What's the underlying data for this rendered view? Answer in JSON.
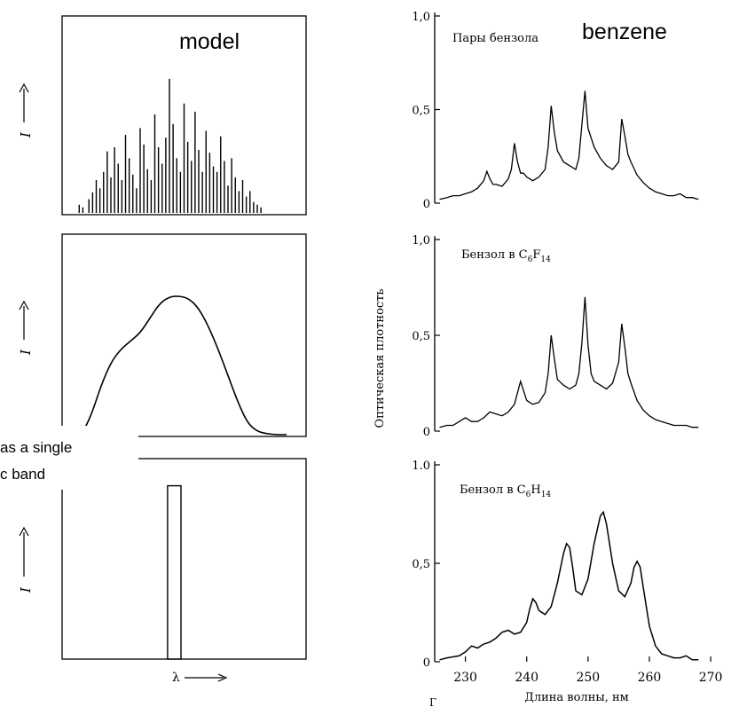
{
  "labels": {
    "model": "model",
    "benzene": "benzene",
    "overlay_line1": "as a single",
    "overlay_line2": "c band",
    "y_left": "I",
    "x_left": "λ",
    "y_right_axis": "Оптическая   плотность",
    "x_right_axis": "Длина волны, нм",
    "x_right_partial": "Г"
  },
  "chart_data": [
    {
      "id": "left-top",
      "type": "bar",
      "title": "model",
      "ylabel": "I",
      "xlabel": "",
      "x": [
        0.07,
        0.085,
        0.11,
        0.125,
        0.14,
        0.155,
        0.17,
        0.185,
        0.2,
        0.215,
        0.23,
        0.245,
        0.26,
        0.275,
        0.29,
        0.305,
        0.32,
        0.335,
        0.35,
        0.365,
        0.38,
        0.395,
        0.41,
        0.425,
        0.44,
        0.455,
        0.47,
        0.485,
        0.5,
        0.515,
        0.53,
        0.545,
        0.56,
        0.575,
        0.59,
        0.605,
        0.62,
        0.635,
        0.65,
        0.665,
        0.68,
        0.695,
        0.71,
        0.725,
        0.74,
        0.755,
        0.77,
        0.785,
        0.8,
        0.815
      ],
      "values": [
        0.06,
        0.04,
        0.1,
        0.15,
        0.24,
        0.18,
        0.3,
        0.45,
        0.26,
        0.48,
        0.36,
        0.24,
        0.57,
        0.4,
        0.28,
        0.18,
        0.62,
        0.5,
        0.32,
        0.24,
        0.72,
        0.48,
        0.36,
        0.55,
        0.98,
        0.65,
        0.4,
        0.3,
        0.8,
        0.52,
        0.38,
        0.74,
        0.46,
        0.3,
        0.6,
        0.44,
        0.34,
        0.3,
        0.56,
        0.38,
        0.2,
        0.4,
        0.26,
        0.16,
        0.24,
        0.12,
        0.16,
        0.08,
        0.06,
        0.04
      ],
      "xlim": [
        0,
        1
      ],
      "ylim": [
        0,
        1.2
      ]
    },
    {
      "id": "left-mid",
      "type": "line",
      "ylabel": "I",
      "xlabel": "",
      "x": [
        0.08,
        0.12,
        0.16,
        0.2,
        0.24,
        0.28,
        0.32,
        0.36,
        0.4,
        0.44,
        0.48,
        0.52,
        0.56,
        0.6,
        0.64,
        0.68,
        0.72,
        0.76,
        0.8,
        0.84,
        0.88,
        0.92
      ],
      "y": [
        0.0,
        0.12,
        0.3,
        0.44,
        0.52,
        0.57,
        0.62,
        0.71,
        0.8,
        0.84,
        0.845,
        0.83,
        0.77,
        0.66,
        0.52,
        0.36,
        0.2,
        0.07,
        0.02,
        0.005,
        0.0,
        0.0
      ],
      "xlim": [
        0,
        1
      ],
      "ylim": [
        0,
        1
      ]
    },
    {
      "id": "left-bot",
      "type": "bar",
      "ylabel": "I",
      "xlabel": "λ",
      "x": [
        0.46
      ],
      "width": 0.055,
      "values": [
        0.88
      ],
      "xlim": [
        0,
        1
      ],
      "ylim": [
        0,
        1
      ]
    },
    {
      "id": "right-top",
      "type": "line",
      "title": "Пары бензола",
      "ylabel": "Оптическая плотность",
      "yticks": [
        "1,0",
        "0,5",
        "0"
      ],
      "x": [
        225.8,
        227,
        228,
        229,
        230,
        231,
        232,
        233,
        233.5,
        234,
        234.5,
        235,
        236,
        237,
        237.5,
        238,
        238.5,
        239,
        239.5,
        240,
        241,
        242,
        243,
        243.5,
        244,
        244.5,
        245,
        246,
        247,
        248,
        248.5,
        249,
        249.5,
        250,
        251,
        252,
        253,
        254,
        255,
        255.5,
        256,
        256.5,
        257,
        258,
        259,
        260,
        261,
        262,
        263,
        264,
        265,
        266,
        267,
        268
      ],
      "y": [
        0.02,
        0.03,
        0.04,
        0.04,
        0.05,
        0.06,
        0.08,
        0.12,
        0.17,
        0.13,
        0.1,
        0.1,
        0.09,
        0.13,
        0.18,
        0.32,
        0.22,
        0.16,
        0.16,
        0.14,
        0.12,
        0.14,
        0.18,
        0.3,
        0.52,
        0.38,
        0.28,
        0.22,
        0.2,
        0.18,
        0.24,
        0.42,
        0.6,
        0.4,
        0.3,
        0.24,
        0.2,
        0.18,
        0.22,
        0.45,
        0.36,
        0.26,
        0.22,
        0.15,
        0.11,
        0.08,
        0.06,
        0.05,
        0.04,
        0.04,
        0.05,
        0.03,
        0.03,
        0.02
      ],
      "xlim": [
        225,
        271
      ],
      "ylim": [
        0,
        1
      ]
    },
    {
      "id": "right-mid",
      "type": "line",
      "title": "Бензол в C6F14",
      "title_main": "Бензол в C",
      "title_sub1": "6",
      "title_mid": "F",
      "title_sub2": "14",
      "ylabel": "Оптическая плотность",
      "yticks": [
        "1,0",
        "0,5",
        "0"
      ],
      "x": [
        225.8,
        227,
        228,
        229,
        230,
        231,
        232,
        233,
        234,
        235,
        236,
        237,
        238,
        238.5,
        239,
        239.5,
        240,
        241,
        242,
        243,
        243.5,
        244,
        244.5,
        245,
        246,
        247,
        248,
        248.5,
        249,
        249.5,
        250,
        250.5,
        251,
        252,
        253,
        254,
        255,
        255.5,
        256,
        256.5,
        257,
        258,
        259,
        260,
        261,
        262,
        263,
        264,
        265,
        266,
        267,
        268
      ],
      "y": [
        0.02,
        0.03,
        0.03,
        0.05,
        0.07,
        0.05,
        0.05,
        0.07,
        0.1,
        0.09,
        0.08,
        0.1,
        0.14,
        0.2,
        0.26,
        0.21,
        0.16,
        0.14,
        0.15,
        0.2,
        0.3,
        0.5,
        0.38,
        0.27,
        0.24,
        0.22,
        0.24,
        0.3,
        0.46,
        0.7,
        0.45,
        0.3,
        0.26,
        0.24,
        0.22,
        0.25,
        0.36,
        0.56,
        0.44,
        0.3,
        0.25,
        0.16,
        0.11,
        0.08,
        0.06,
        0.05,
        0.04,
        0.03,
        0.03,
        0.03,
        0.02,
        0.02
      ],
      "xlim": [
        225,
        271
      ],
      "ylim": [
        0,
        1
      ]
    },
    {
      "id": "right-bot",
      "type": "line",
      "title": "Бензол в C6H14",
      "title_main": "Бензол в C",
      "title_sub1": "6",
      "title_mid": "H",
      "title_sub2": "14",
      "ylabel": "Оптическая плотность",
      "xlabel": "Длина волны, нм",
      "yticks": [
        "1.0",
        "0,5",
        "0"
      ],
      "xticks": [
        230,
        240,
        250,
        260,
        270
      ],
      "x": [
        225.8,
        227,
        229,
        230,
        231,
        232,
        233,
        234,
        235,
        236,
        237,
        238,
        239,
        240,
        240.5,
        241,
        241.5,
        242,
        243,
        244,
        245,
        246,
        246.5,
        247,
        247.5,
        248,
        249,
        250,
        251,
        252,
        252.5,
        253,
        254,
        255,
        256,
        257,
        257.5,
        258,
        258.5,
        259,
        260,
        261,
        262,
        263,
        264,
        265,
        266,
        267,
        268
      ],
      "y": [
        0.01,
        0.02,
        0.03,
        0.05,
        0.08,
        0.07,
        0.09,
        0.1,
        0.12,
        0.15,
        0.16,
        0.14,
        0.15,
        0.2,
        0.27,
        0.32,
        0.3,
        0.26,
        0.24,
        0.28,
        0.4,
        0.55,
        0.6,
        0.58,
        0.48,
        0.36,
        0.34,
        0.42,
        0.6,
        0.74,
        0.76,
        0.7,
        0.5,
        0.36,
        0.33,
        0.4,
        0.48,
        0.51,
        0.48,
        0.38,
        0.18,
        0.08,
        0.04,
        0.03,
        0.02,
        0.02,
        0.03,
        0.01,
        0.01
      ],
      "xlim": [
        225,
        271
      ],
      "ylim": [
        0,
        1
      ]
    }
  ]
}
